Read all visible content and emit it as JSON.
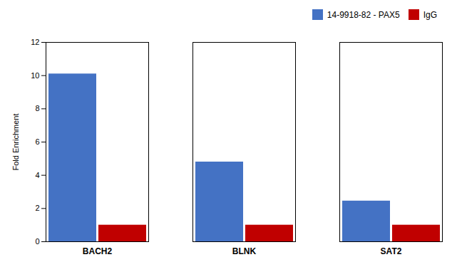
{
  "chart_data": {
    "type": "bar",
    "categories": [
      "BACH2",
      "BLNK",
      "SAT2"
    ],
    "series": [
      {
        "name": "14-9918-82 - PAX5",
        "color": "#4472C4",
        "values": [
          10.1,
          4.8,
          2.45
        ]
      },
      {
        "name": "IgG",
        "color": "#C00000",
        "values": [
          1.0,
          1.0,
          1.0
        ]
      }
    ],
    "ylabel": "Fold Enrichment",
    "ylim": [
      0,
      12
    ],
    "yticks": [
      0,
      2,
      4,
      6,
      8,
      10,
      12
    ],
    "grid": false,
    "legend": "upper right"
  }
}
